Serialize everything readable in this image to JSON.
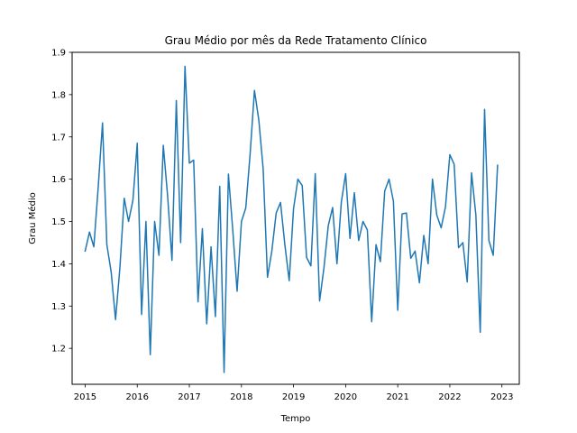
{
  "chart_data": {
    "type": "line",
    "title": "Grau Médio por mês da Rede Tratamento Clínico",
    "xlabel": "Tempo",
    "ylabel": "Grau Médio",
    "x_ticks": [
      "2015",
      "2016",
      "2017",
      "2018",
      "2019",
      "2020",
      "2021",
      "2022",
      "2023"
    ],
    "y_ticks": [
      "1.2",
      "1.3",
      "1.4",
      "1.5",
      "1.6",
      "1.7",
      "1.8",
      "1.9"
    ],
    "xlim": [
      "2014-10",
      "2023-05"
    ],
    "ylim": [
      1.115,
      1.9
    ],
    "grid": false,
    "line_color": "#1f77b4",
    "series": [
      {
        "x": [
          "2015-01",
          "2015-02",
          "2015-03",
          "2015-04",
          "2015-05",
          "2015-06",
          "2015-07",
          "2015-08",
          "2015-09",
          "2015-10",
          "2015-11",
          "2015-12",
          "2016-01",
          "2016-02",
          "2016-03",
          "2016-04",
          "2016-05",
          "2016-06",
          "2016-07",
          "2016-08",
          "2016-09",
          "2016-10",
          "2016-11",
          "2016-12",
          "2017-01",
          "2017-02",
          "2017-03",
          "2017-04",
          "2017-05",
          "2017-06",
          "2017-07",
          "2017-08",
          "2017-09",
          "2017-10",
          "2017-11",
          "2017-12",
          "2018-01",
          "2018-02",
          "2018-03",
          "2018-04",
          "2018-05",
          "2018-06",
          "2018-07",
          "2018-08",
          "2018-09",
          "2018-10",
          "2018-11",
          "2018-12",
          "2019-01",
          "2019-02",
          "2019-03",
          "2019-04",
          "2019-05",
          "2019-06",
          "2019-07",
          "2019-08",
          "2019-09",
          "2019-10",
          "2019-11",
          "2019-12",
          "2020-01",
          "2020-02",
          "2020-03",
          "2020-04",
          "2020-05",
          "2020-06",
          "2020-07",
          "2020-08",
          "2020-09",
          "2020-10",
          "2020-11",
          "2020-12",
          "2021-01",
          "2021-02",
          "2021-03",
          "2021-04",
          "2021-05",
          "2021-06",
          "2021-07",
          "2021-08",
          "2021-09",
          "2021-10",
          "2021-11",
          "2021-12",
          "2022-01",
          "2022-02",
          "2022-03",
          "2022-04",
          "2022-05",
          "2022-06",
          "2022-07",
          "2022-08",
          "2022-09",
          "2022-10",
          "2022-11",
          "2022-12"
        ],
        "values": [
          1.43,
          1.475,
          1.44,
          1.58,
          1.733,
          1.445,
          1.38,
          1.268,
          1.39,
          1.555,
          1.5,
          1.55,
          1.685,
          1.28,
          1.5,
          1.185,
          1.5,
          1.42,
          1.68,
          1.56,
          1.408,
          1.786,
          1.45,
          1.867,
          1.638,
          1.645,
          1.31,
          1.483,
          1.258,
          1.44,
          1.275,
          1.583,
          1.143,
          1.612,
          1.48,
          1.335,
          1.5,
          1.532,
          1.66,
          1.81,
          1.74,
          1.625,
          1.368,
          1.43,
          1.52,
          1.545,
          1.445,
          1.36,
          1.53,
          1.6,
          1.585,
          1.415,
          1.395,
          1.613,
          1.312,
          1.39,
          1.49,
          1.533,
          1.4,
          1.545,
          1.613,
          1.46,
          1.568,
          1.455,
          1.5,
          1.48,
          1.263,
          1.445,
          1.405,
          1.572,
          1.6,
          1.548,
          1.29,
          1.518,
          1.52,
          1.413,
          1.43,
          1.355,
          1.467,
          1.4,
          1.6,
          1.515,
          1.485,
          1.535,
          1.658,
          1.635,
          1.438,
          1.45,
          1.357,
          1.615,
          1.515,
          1.238,
          1.765,
          1.455,
          1.42,
          1.633
        ]
      }
    ]
  }
}
